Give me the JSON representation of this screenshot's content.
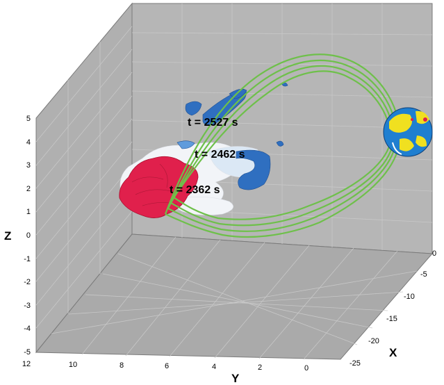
{
  "figure": {
    "axes": {
      "z": {
        "title": "Z",
        "ticks": [
          "5",
          "4",
          "3",
          "2",
          "1",
          "0",
          "-1",
          "-2",
          "-3",
          "-4",
          "-5"
        ]
      },
      "y": {
        "title": "Y",
        "ticks": [
          "12",
          "10",
          "8",
          "6",
          "4",
          "2",
          "0"
        ]
      },
      "x": {
        "title": "X",
        "ticks": [
          "0",
          "-5",
          "-10",
          "-15",
          "-20",
          "-25"
        ]
      }
    },
    "time_labels": [
      "t = 2527 s",
      "t = 2462 s",
      "t = 2362 s"
    ],
    "colors": {
      "wall": "#b4b4b4",
      "field_lines": "#6ec04a",
      "surface_red": "#e0204c",
      "surface_blue": "#2f6fc0",
      "surface_white": "#f2f4f8",
      "earth_ocean": "#1f7fd0",
      "earth_land": "#f0e020"
    },
    "icons": [
      "earth-globe"
    ]
  }
}
